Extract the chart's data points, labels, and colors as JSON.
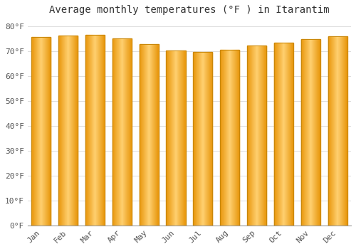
{
  "months": [
    "Jan",
    "Feb",
    "Mar",
    "Apr",
    "May",
    "Jun",
    "Jul",
    "Aug",
    "Sep",
    "Oct",
    "Nov",
    "Dec"
  ],
  "values": [
    75.6,
    76.3,
    76.6,
    75.2,
    72.9,
    70.3,
    69.6,
    70.5,
    72.3,
    73.4,
    74.7,
    75.9
  ],
  "title": "Average monthly temperatures (°F ) in Itarantim",
  "ylabel_ticks": [
    0,
    10,
    20,
    30,
    40,
    50,
    60,
    70,
    80
  ],
  "ylim": [
    0,
    83
  ],
  "bar_color_left": "#F5A623",
  "bar_color_center": "#FFD070",
  "bar_color_right": "#E8950A",
  "background_color": "#ffffff",
  "grid_color": "#dddddd",
  "title_fontsize": 10,
  "tick_fontsize": 8,
  "bar_edge_color": "#C8870A"
}
